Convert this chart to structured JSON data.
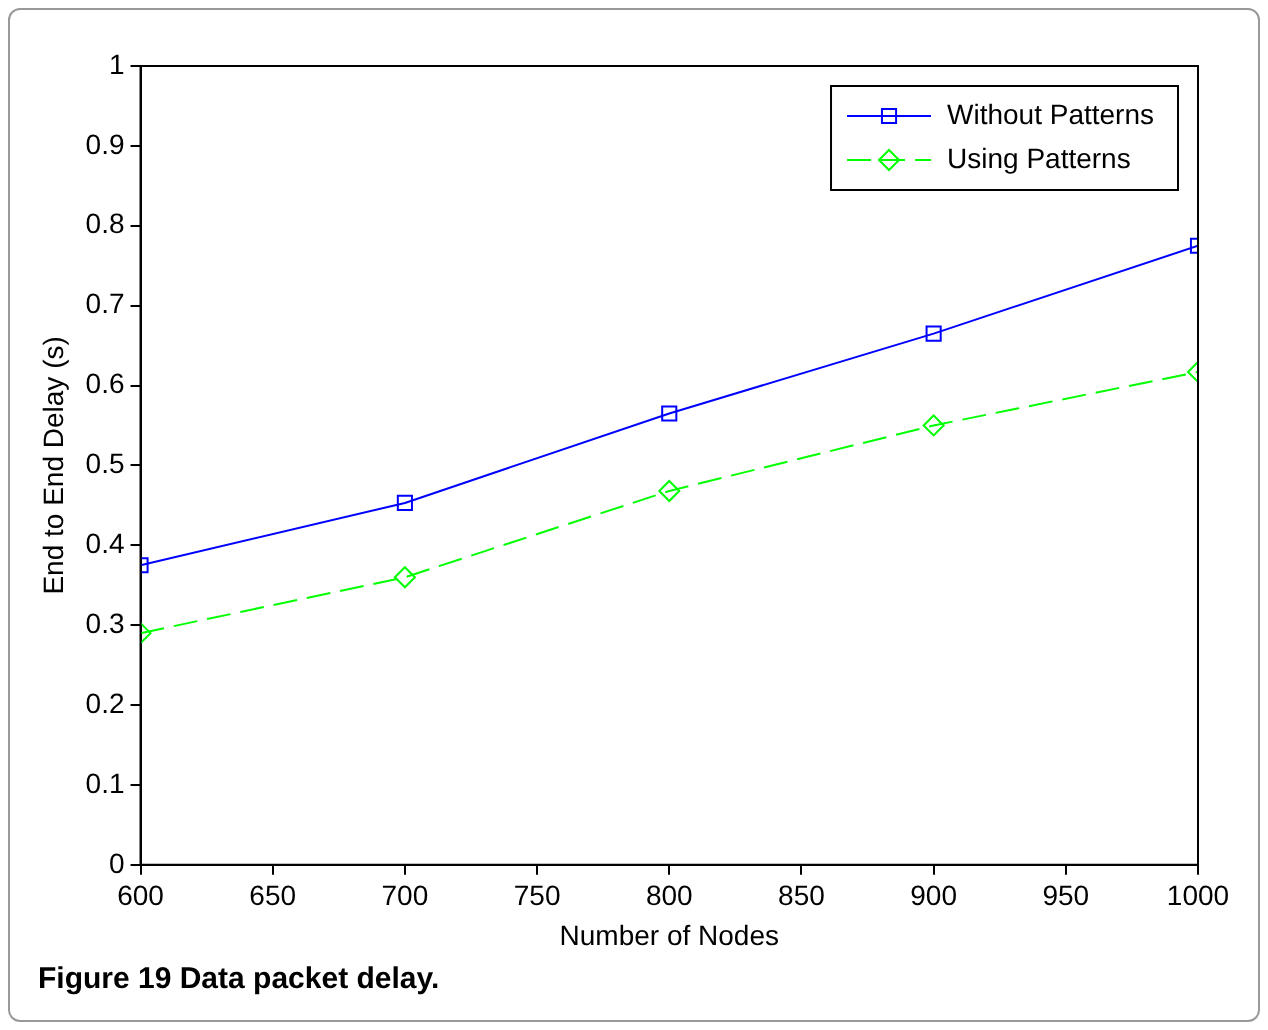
{
  "chart_data": {
    "type": "line",
    "xlabel": "Number of Nodes",
    "ylabel": "End to End Delay (s)",
    "x": [
      600,
      700,
      800,
      900,
      1000
    ],
    "series": [
      {
        "name": "Without Patterns",
        "color": "#0000ff",
        "marker": "square",
        "line_style": "solid",
        "values": [
          0.375,
          0.453,
          0.565,
          0.665,
          0.775
        ]
      },
      {
        "name": "Using Patterns",
        "color": "#00ff00",
        "marker": "diamond",
        "line_style": "dashed",
        "values": [
          0.29,
          0.36,
          0.468,
          0.55,
          0.617
        ]
      }
    ],
    "xlim": [
      600,
      1000
    ],
    "xticks": [
      600,
      650,
      700,
      750,
      800,
      850,
      900,
      950,
      1000
    ],
    "ylim": [
      0,
      1
    ],
    "yticks": [
      0,
      0.1,
      0.2,
      0.3,
      0.4,
      0.5,
      0.6,
      0.7,
      0.8,
      0.9,
      1
    ],
    "grid": false,
    "legend": "top right",
    "annotations": [
      "Figure 19 Data packet delay."
    ]
  }
}
